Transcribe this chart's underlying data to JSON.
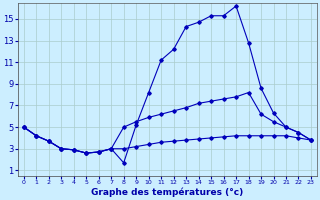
{
  "xlabel": "Graphe des températures (°c)",
  "background_color": "#cceeff",
  "grid_color": "#aacccc",
  "line_color": "#0000bb",
  "x_ticks": [
    0,
    1,
    2,
    3,
    4,
    5,
    6,
    7,
    8,
    9,
    10,
    11,
    12,
    13,
    14,
    15,
    16,
    17,
    18,
    19,
    20,
    21,
    22,
    23
  ],
  "y_ticks": [
    1,
    3,
    5,
    7,
    9,
    11,
    13,
    15
  ],
  "ylim": [
    0.5,
    16.5
  ],
  "xlim": [
    -0.5,
    23.5
  ],
  "line1_x": [
    0,
    1,
    2,
    3,
    4,
    5,
    6,
    7,
    8,
    9,
    10,
    11,
    12,
    13,
    14,
    15,
    16,
    17,
    18,
    19,
    20,
    21,
    22,
    23
  ],
  "line1_y": [
    5.0,
    4.2,
    3.7,
    3.0,
    2.9,
    2.6,
    2.7,
    3.0,
    1.7,
    5.2,
    8.2,
    11.2,
    12.2,
    14.3,
    14.7,
    15.3,
    15.3,
    16.2,
    12.8,
    8.6,
    6.3,
    5.0,
    4.5,
    3.8
  ],
  "line2_x": [
    0,
    1,
    2,
    3,
    4,
    5,
    6,
    7,
    8,
    9,
    10,
    11,
    12,
    13,
    14,
    15,
    16,
    17,
    18,
    19,
    20,
    21,
    22,
    23
  ],
  "line2_y": [
    5.0,
    4.2,
    3.7,
    3.0,
    2.9,
    2.6,
    2.7,
    3.0,
    5.0,
    5.5,
    5.9,
    6.2,
    6.5,
    6.8,
    7.2,
    7.4,
    7.6,
    7.8,
    8.2,
    6.2,
    5.5,
    5.0,
    4.5,
    3.8
  ],
  "line3_x": [
    0,
    1,
    2,
    3,
    4,
    5,
    6,
    7,
    8,
    9,
    10,
    11,
    12,
    13,
    14,
    15,
    16,
    17,
    18,
    19,
    20,
    21,
    22,
    23
  ],
  "line3_y": [
    5.0,
    4.2,
    3.7,
    3.0,
    2.9,
    2.6,
    2.7,
    3.0,
    3.0,
    3.2,
    3.4,
    3.6,
    3.7,
    3.8,
    3.9,
    4.0,
    4.1,
    4.2,
    4.2,
    4.2,
    4.2,
    4.2,
    4.0,
    3.8
  ]
}
